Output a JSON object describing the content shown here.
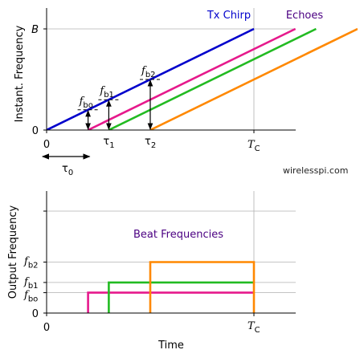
{
  "chart_data": [
    {
      "type": "line",
      "ylabel": "Instant. Frequency",
      "xticks": [
        {
          "x": 0,
          "label": "0"
        },
        {
          "x": 100,
          "label": "T",
          "sub": "C"
        }
      ],
      "yticks": [
        {
          "y": 0,
          "label": "0"
        },
        {
          "y": 100,
          "label": "B",
          "italic": true
        }
      ],
      "xlim": [
        0,
        113
      ],
      "ylim": [
        0,
        122
      ],
      "grid": true,
      "series_labels": [
        {
          "text": "Tx Chirp",
          "color": "#0000cc"
        },
        {
          "text": "Echoes",
          "color": "#4b0082"
        }
      ],
      "series": [
        {
          "color": "#0000cc",
          "x": [
            0,
            100
          ],
          "y": [
            0,
            100
          ]
        },
        {
          "color": "#e6198c",
          "x": [
            20,
            120
          ],
          "y": [
            0,
            100
          ]
        },
        {
          "color": "#22bb22",
          "x": [
            30,
            130
          ],
          "y": [
            0,
            100
          ]
        },
        {
          "color": "#ff8800",
          "x": [
            50,
            150
          ],
          "y": [
            0,
            100
          ]
        }
      ],
      "delay_labels": [
        {
          "x": 30,
          "base": "τ",
          "sub": "1"
        },
        {
          "x": 50,
          "base": "τ",
          "sub": "2"
        }
      ],
      "beat_arrows": [
        {
          "x": 20,
          "y0": 0,
          "y1": 20,
          "base": "f",
          "sub": "bo"
        },
        {
          "x": 30,
          "y0": 0,
          "y1": 30,
          "base": "f",
          "sub": "b1"
        },
        {
          "x": 50,
          "y0": 0,
          "y1": 50,
          "base": "f",
          "sub": "b2"
        }
      ],
      "tau0": {
        "x0": -2,
        "x1": 20,
        "base": "τ",
        "sub": "0"
      },
      "watermark": "wirelesspi.com"
    },
    {
      "type": "line",
      "title": "Beat Frequencies",
      "title_color": "#4b0082",
      "xlabel": "Time",
      "ylabel": "Output Frequency",
      "xticks": [
        {
          "x": 0,
          "label": "0"
        },
        {
          "x": 100,
          "label": "T",
          "sub": "C"
        }
      ],
      "yticks": [
        {
          "y": 0,
          "label": "0"
        },
        {
          "y": 20,
          "base": "f",
          "sub": "bo"
        },
        {
          "y": 30,
          "base": "f",
          "sub": "b1"
        },
        {
          "y": 50,
          "base": "f",
          "sub": "b2"
        },
        {
          "y": 100,
          "label": ""
        }
      ],
      "xlim": [
        0,
        113
      ],
      "ylim": [
        0,
        118
      ],
      "grid": true,
      "series": [
        {
          "color": "#e6198c",
          "x": [
            20,
            20,
            100
          ],
          "y": [
            0,
            20,
            20
          ]
        },
        {
          "color": "#22bb22",
          "x": [
            30,
            30,
            100
          ],
          "y": [
            0,
            30,
            30
          ]
        },
        {
          "color": "#ff8800",
          "x": [
            50,
            50,
            100,
            100
          ],
          "y": [
            0,
            50,
            50,
            0
          ]
        }
      ]
    }
  ]
}
